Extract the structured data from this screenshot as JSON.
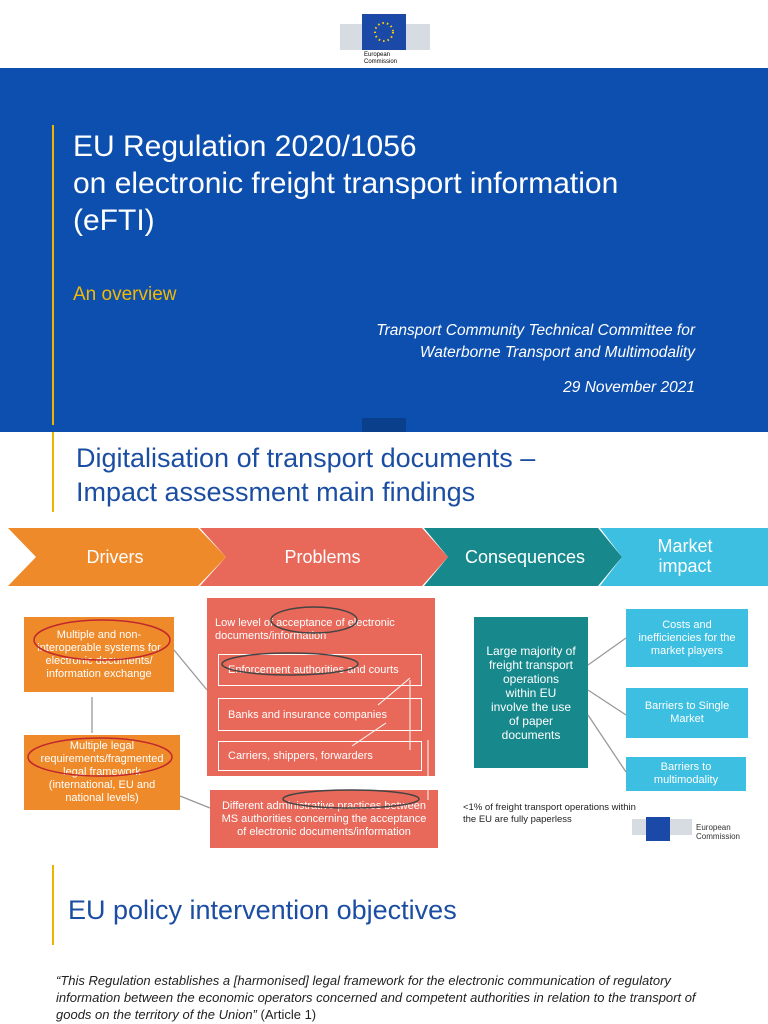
{
  "logo": {
    "label": [
      "European",
      "Commission"
    ]
  },
  "cover": {
    "title_lines": [
      "EU Regulation 2020/1056",
      "on electronic freight transport information",
      "(eFTI)"
    ],
    "subtitle": "An overview",
    "event_lines": [
      "Transport Community Technical Committee for",
      "Waterborne Transport and Multimodality"
    ],
    "date": "29 November 2021"
  },
  "findings": {
    "heading_lines": [
      "Digitalisation of transport documents –",
      "Impact assessment main findings"
    ],
    "stages": [
      "Drivers",
      "Problems",
      "Consequences",
      "Market impact"
    ],
    "drivers": [
      "Multiple and non-interoperable systems for electronic documents/ information exchange",
      "Multiple legal requirements/fragmented legal framework (international, EU and national levels)"
    ],
    "problem_main": "Low level of acceptance of electronic documents/information",
    "problem_actors": [
      "Enforcement authorities and courts",
      "Banks and insurance companies",
      "Carriers, shippers, forwarders"
    ],
    "problem_second": "Different administrative practices between MS authorities concerning the acceptance of electronic documents/information",
    "consequence": "Large majority of freight transport operations within EU involve the use of paper documents",
    "impacts": [
      "Costs and inefficiencies for the market players",
      "Barriers to Single Market",
      "Barriers to multimodality"
    ],
    "note": "<1% of freight transport operations within the EU are fully paperless",
    "logo_label": [
      "European",
      "Commission"
    ]
  },
  "objectives": {
    "heading": "EU policy intervention objectives",
    "quote": "“This Regulation establishes a [harmonised] legal framework for the electronic communication of regulatory information between the economic operators concerned and competent authorities in relation to the transport of goods on the territory of the Union”",
    "citation": "(Article 1)"
  }
}
